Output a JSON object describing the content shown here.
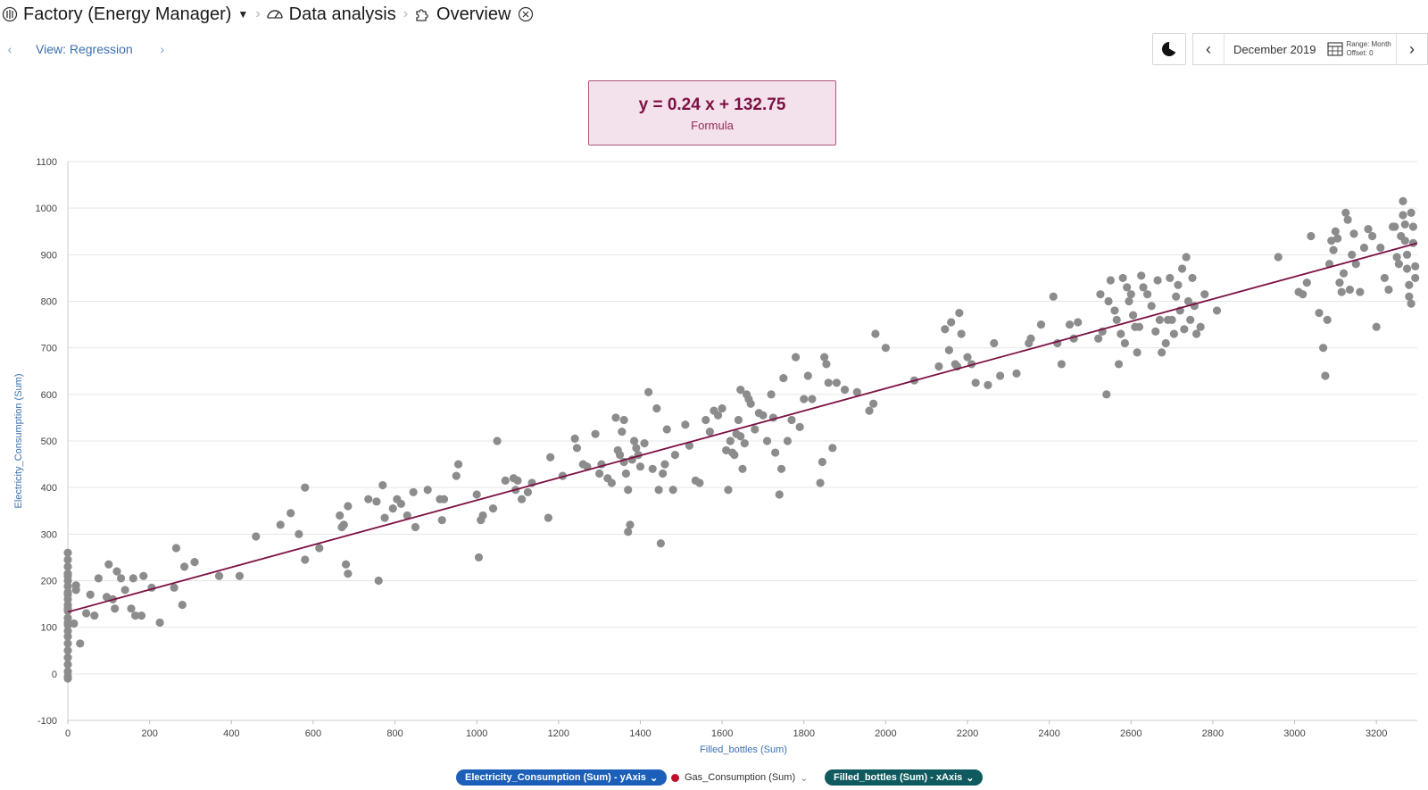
{
  "breadcrumb": {
    "root": "Factory (Energy Manager)",
    "level2": "Data analysis",
    "level3": "Overview"
  },
  "view": {
    "label": "View: Regression"
  },
  "date_nav": {
    "date": "December 2019",
    "range": "Range: Month",
    "offset": "Offset: 0"
  },
  "formula": {
    "text": "y = 0.24 x + 132.75",
    "label": "Formula"
  },
  "legend": {
    "y_series": "Electricity_Consumption (Sum) - yAxis",
    "other_series": "Gas_Consumption (Sum)",
    "x_series": "Filled_bottles (Sum) - xAxis"
  },
  "colors": {
    "points": "#8c8c8c",
    "regression_line": "#7d1044",
    "y_pill": "#1b5fb8",
    "x_pill": "#0e5a5e",
    "gas_dot": "#c0102a"
  },
  "chart_data": {
    "type": "scatter",
    "title": "",
    "xlabel": "Filled_bottles (Sum)",
    "ylabel": "Electricity_Consumption (Sum)",
    "xlim": [
      0,
      3300
    ],
    "ylim": [
      -100,
      1100
    ],
    "x_ticks": [
      0,
      200,
      400,
      600,
      800,
      1000,
      1200,
      1400,
      1600,
      1800,
      2000,
      2200,
      2400,
      2600,
      2800,
      3000,
      3200
    ],
    "y_ticks": [
      -100,
      0,
      100,
      200,
      300,
      400,
      500,
      600,
      700,
      800,
      900,
      1000,
      1100
    ],
    "grid": "horizontal",
    "regression": {
      "slope": 0.24,
      "intercept": 132.75
    },
    "points": [
      [
        0,
        260
      ],
      [
        0,
        245
      ],
      [
        0,
        230
      ],
      [
        0,
        215
      ],
      [
        0,
        200
      ],
      [
        0,
        188
      ],
      [
        0,
        175
      ],
      [
        0,
        160
      ],
      [
        0,
        148
      ],
      [
        0,
        135
      ],
      [
        0,
        120
      ],
      [
        0,
        105
      ],
      [
        0,
        92
      ],
      [
        0,
        80
      ],
      [
        0,
        65
      ],
      [
        0,
        50
      ],
      [
        0,
        35
      ],
      [
        0,
        20
      ],
      [
        0,
        5
      ],
      [
        0,
        -5
      ],
      [
        0,
        -10
      ],
      [
        0,
        110
      ],
      [
        0,
        140
      ],
      [
        0,
        170
      ],
      [
        0,
        210
      ],
      [
        20,
        190
      ],
      [
        20,
        180
      ],
      [
        15,
        108
      ],
      [
        30,
        65
      ],
      [
        45,
        130
      ],
      [
        55,
        170
      ],
      [
        65,
        125
      ],
      [
        75,
        205
      ],
      [
        95,
        165
      ],
      [
        100,
        235
      ],
      [
        110,
        160
      ],
      [
        115,
        140
      ],
      [
        120,
        220
      ],
      [
        130,
        205
      ],
      [
        140,
        180
      ],
      [
        155,
        140
      ],
      [
        160,
        205
      ],
      [
        165,
        125
      ],
      [
        180,
        125
      ],
      [
        185,
        210
      ],
      [
        205,
        185
      ],
      [
        225,
        110
      ],
      [
        260,
        185
      ],
      [
        265,
        270
      ],
      [
        280,
        148
      ],
      [
        285,
        230
      ],
      [
        310,
        240
      ],
      [
        370,
        210
      ],
      [
        420,
        210
      ],
      [
        460,
        295
      ],
      [
        520,
        320
      ],
      [
        545,
        345
      ],
      [
        565,
        300
      ],
      [
        580,
        245
      ],
      [
        580,
        400
      ],
      [
        615,
        270
      ],
      [
        665,
        340
      ],
      [
        670,
        315
      ],
      [
        675,
        320
      ],
      [
        680,
        235
      ],
      [
        685,
        215
      ],
      [
        685,
        360
      ],
      [
        735,
        375
      ],
      [
        755,
        370
      ],
      [
        760,
        200
      ],
      [
        770,
        405
      ],
      [
        775,
        335
      ],
      [
        795,
        355
      ],
      [
        805,
        375
      ],
      [
        815,
        365
      ],
      [
        830,
        340
      ],
      [
        845,
        390
      ],
      [
        850,
        315
      ],
      [
        880,
        395
      ],
      [
        910,
        375
      ],
      [
        915,
        330
      ],
      [
        920,
        375
      ],
      [
        950,
        425
      ],
      [
        955,
        450
      ],
      [
        1000,
        385
      ],
      [
        1005,
        250
      ],
      [
        1010,
        330
      ],
      [
        1015,
        340
      ],
      [
        1040,
        355
      ],
      [
        1050,
        500
      ],
      [
        1070,
        415
      ],
      [
        1090,
        420
      ],
      [
        1095,
        395
      ],
      [
        1100,
        415
      ],
      [
        1110,
        375
      ],
      [
        1125,
        390
      ],
      [
        1135,
        410
      ],
      [
        1175,
        335
      ],
      [
        1180,
        465
      ],
      [
        1210,
        425
      ],
      [
        1240,
        505
      ],
      [
        1245,
        485
      ],
      [
        1260,
        450
      ],
      [
        1270,
        445
      ],
      [
        1290,
        515
      ],
      [
        1300,
        430
      ],
      [
        1305,
        450
      ],
      [
        1320,
        420
      ],
      [
        1330,
        410
      ],
      [
        1340,
        550
      ],
      [
        1345,
        480
      ],
      [
        1350,
        470
      ],
      [
        1355,
        520
      ],
      [
        1360,
        545
      ],
      [
        1360,
        455
      ],
      [
        1365,
        430
      ],
      [
        1370,
        395
      ],
      [
        1370,
        305
      ],
      [
        1375,
        320
      ],
      [
        1380,
        460
      ],
      [
        1385,
        500
      ],
      [
        1390,
        485
      ],
      [
        1395,
        470
      ],
      [
        1400,
        445
      ],
      [
        1410,
        495
      ],
      [
        1420,
        605
      ],
      [
        1430,
        440
      ],
      [
        1440,
        570
      ],
      [
        1445,
        395
      ],
      [
        1450,
        280
      ],
      [
        1455,
        430
      ],
      [
        1460,
        450
      ],
      [
        1465,
        525
      ],
      [
        1480,
        395
      ],
      [
        1485,
        470
      ],
      [
        1510,
        535
      ],
      [
        1520,
        490
      ],
      [
        1535,
        415
      ],
      [
        1545,
        410
      ],
      [
        1560,
        545
      ],
      [
        1570,
        520
      ],
      [
        1580,
        565
      ],
      [
        1590,
        555
      ],
      [
        1600,
        570
      ],
      [
        1610,
        480
      ],
      [
        1615,
        395
      ],
      [
        1620,
        500
      ],
      [
        1625,
        475
      ],
      [
        1630,
        470
      ],
      [
        1635,
        515
      ],
      [
        1640,
        545
      ],
      [
        1645,
        510
      ],
      [
        1645,
        610
      ],
      [
        1650,
        440
      ],
      [
        1655,
        495
      ],
      [
        1660,
        600
      ],
      [
        1665,
        590
      ],
      [
        1670,
        580
      ],
      [
        1680,
        525
      ],
      [
        1690,
        560
      ],
      [
        1700,
        555
      ],
      [
        1710,
        500
      ],
      [
        1720,
        600
      ],
      [
        1725,
        550
      ],
      [
        1730,
        475
      ],
      [
        1740,
        385
      ],
      [
        1745,
        440
      ],
      [
        1750,
        635
      ],
      [
        1760,
        500
      ],
      [
        1770,
        545
      ],
      [
        1780,
        680
      ],
      [
        1790,
        530
      ],
      [
        1800,
        590
      ],
      [
        1810,
        640
      ],
      [
        1820,
        590
      ],
      [
        1840,
        410
      ],
      [
        1845,
        455
      ],
      [
        1850,
        680
      ],
      [
        1855,
        665
      ],
      [
        1860,
        625
      ],
      [
        1870,
        485
      ],
      [
        1880,
        625
      ],
      [
        1900,
        610
      ],
      [
        1930,
        605
      ],
      [
        1960,
        565
      ],
      [
        1970,
        580
      ],
      [
        1975,
        730
      ],
      [
        2000,
        700
      ],
      [
        2070,
        630
      ],
      [
        2130,
        660
      ],
      [
        2145,
        740
      ],
      [
        2155,
        695
      ],
      [
        2160,
        755
      ],
      [
        2170,
        665
      ],
      [
        2175,
        660
      ],
      [
        2180,
        775
      ],
      [
        2185,
        730
      ],
      [
        2200,
        680
      ],
      [
        2210,
        665
      ],
      [
        2220,
        625
      ],
      [
        2250,
        620
      ],
      [
        2265,
        710
      ],
      [
        2280,
        640
      ],
      [
        2320,
        645
      ],
      [
        2350,
        710
      ],
      [
        2355,
        720
      ],
      [
        2380,
        750
      ],
      [
        2410,
        810
      ],
      [
        2420,
        710
      ],
      [
        2430,
        665
      ],
      [
        2450,
        750
      ],
      [
        2460,
        720
      ],
      [
        2470,
        755
      ],
      [
        2520,
        720
      ],
      [
        2525,
        815
      ],
      [
        2530,
        735
      ],
      [
        2540,
        600
      ],
      [
        2545,
        800
      ],
      [
        2550,
        845
      ],
      [
        2560,
        780
      ],
      [
        2565,
        760
      ],
      [
        2570,
        665
      ],
      [
        2575,
        730
      ],
      [
        2580,
        850
      ],
      [
        2585,
        710
      ],
      [
        2590,
        830
      ],
      [
        2595,
        800
      ],
      [
        2600,
        815
      ],
      [
        2605,
        770
      ],
      [
        2610,
        745
      ],
      [
        2615,
        690
      ],
      [
        2620,
        745
      ],
      [
        2625,
        855
      ],
      [
        2630,
        830
      ],
      [
        2640,
        815
      ],
      [
        2650,
        790
      ],
      [
        2660,
        735
      ],
      [
        2665,
        845
      ],
      [
        2670,
        760
      ],
      [
        2675,
        690
      ],
      [
        2685,
        710
      ],
      [
        2690,
        760
      ],
      [
        2695,
        850
      ],
      [
        2700,
        760
      ],
      [
        2705,
        730
      ],
      [
        2710,
        810
      ],
      [
        2715,
        835
      ],
      [
        2720,
        780
      ],
      [
        2725,
        870
      ],
      [
        2730,
        740
      ],
      [
        2735,
        895
      ],
      [
        2740,
        800
      ],
      [
        2745,
        760
      ],
      [
        2750,
        850
      ],
      [
        2755,
        790
      ],
      [
        2760,
        730
      ],
      [
        2770,
        745
      ],
      [
        2780,
        815
      ],
      [
        2810,
        780
      ],
      [
        2960,
        895
      ],
      [
        3010,
        820
      ],
      [
        3020,
        815
      ],
      [
        3030,
        840
      ],
      [
        3040,
        940
      ],
      [
        3060,
        775
      ],
      [
        3070,
        700
      ],
      [
        3075,
        640
      ],
      [
        3080,
        760
      ],
      [
        3085,
        880
      ],
      [
        3090,
        930
      ],
      [
        3095,
        910
      ],
      [
        3100,
        950
      ],
      [
        3105,
        935
      ],
      [
        3110,
        840
      ],
      [
        3115,
        820
      ],
      [
        3120,
        860
      ],
      [
        3125,
        990
      ],
      [
        3130,
        975
      ],
      [
        3135,
        825
      ],
      [
        3140,
        900
      ],
      [
        3145,
        945
      ],
      [
        3150,
        880
      ],
      [
        3160,
        820
      ],
      [
        3170,
        915
      ],
      [
        3180,
        955
      ],
      [
        3190,
        940
      ],
      [
        3200,
        745
      ],
      [
        3210,
        915
      ],
      [
        3220,
        850
      ],
      [
        3230,
        825
      ],
      [
        3240,
        960
      ],
      [
        3245,
        960
      ],
      [
        3250,
        895
      ],
      [
        3255,
        880
      ],
      [
        3260,
        940
      ],
      [
        3265,
        1015
      ],
      [
        3265,
        985
      ],
      [
        3270,
        965
      ],
      [
        3270,
        930
      ],
      [
        3275,
        900
      ],
      [
        3275,
        870
      ],
      [
        3280,
        835
      ],
      [
        3280,
        810
      ],
      [
        3285,
        795
      ],
      [
        3285,
        990
      ],
      [
        3290,
        960
      ],
      [
        3290,
        925
      ],
      [
        3295,
        850
      ],
      [
        3295,
        875
      ]
    ]
  }
}
